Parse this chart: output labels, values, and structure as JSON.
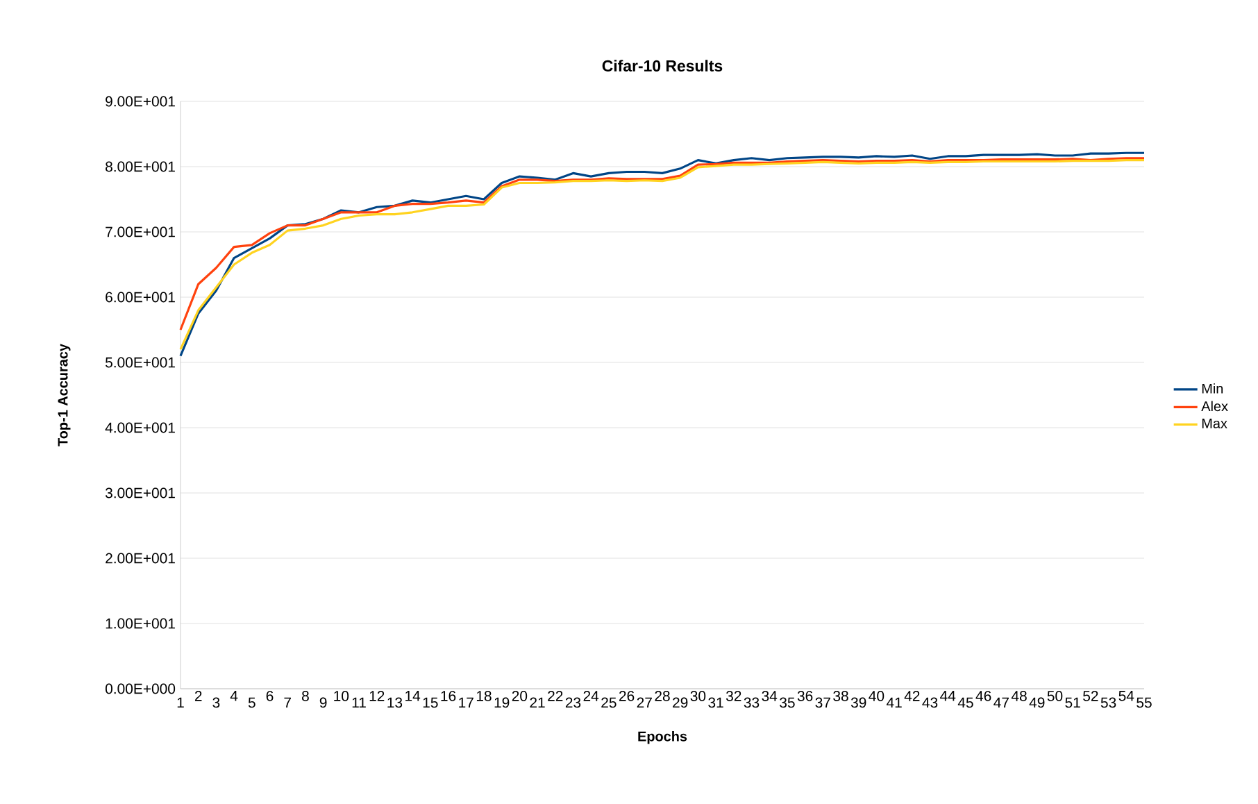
{
  "chart_data": {
    "type": "line",
    "title": "Cifar-10 Results",
    "xlabel": "Epochs",
    "ylabel": "Top-1 Accuracy",
    "categories": [
      "1",
      "2",
      "3",
      "4",
      "5",
      "6",
      "7",
      "8",
      "9",
      "10",
      "11",
      "12",
      "13",
      "14",
      "15",
      "16",
      "17",
      "18",
      "19",
      "20",
      "21",
      "22",
      "23",
      "24",
      "25",
      "26",
      "27",
      "28",
      "29",
      "30",
      "31",
      "32",
      "33",
      "34",
      "35",
      "36",
      "37",
      "38",
      "39",
      "40",
      "41",
      "42",
      "43",
      "44",
      "45",
      "46",
      "47",
      "48",
      "49",
      "50",
      "51",
      "52",
      "53",
      "54",
      "55"
    ],
    "series": [
      {
        "name": "Min",
        "color": "#004586",
        "values": [
          51,
          57.5,
          61,
          66,
          67.5,
          69,
          71,
          71.2,
          72,
          73.3,
          73,
          73.8,
          74,
          74.8,
          74.5,
          75,
          75.5,
          75,
          77.5,
          78.5,
          78.3,
          78,
          79,
          78.5,
          79,
          79.2,
          79.2,
          79,
          79.7,
          81,
          80.5,
          81,
          81.3,
          81,
          81.3,
          81.4,
          81.5,
          81.5,
          81.4,
          81.6,
          81.5,
          81.7,
          81.2,
          81.6,
          81.6,
          81.8,
          81.8,
          81.8,
          81.9,
          81.7,
          81.7,
          82,
          82,
          82.1,
          82.1
        ]
      },
      {
        "name": "Alex",
        "color": "#ff420e",
        "values": [
          55,
          62,
          64.5,
          67.7,
          68,
          69.8,
          71,
          71,
          72,
          73,
          73,
          73,
          74,
          74.3,
          74.3,
          74.5,
          74.8,
          74.5,
          77,
          78,
          78,
          77.8,
          78,
          78,
          78.2,
          78.1,
          78.1,
          78.1,
          78.6,
          80.3,
          80.4,
          80.6,
          80.6,
          80.6,
          80.8,
          80.9,
          81,
          80.9,
          80.8,
          80.9,
          80.9,
          81,
          80.8,
          81,
          81,
          81,
          81.1,
          81.1,
          81.1,
          81.1,
          81.2,
          81,
          81.2,
          81.3,
          81.3
        ]
      },
      {
        "name": "Max",
        "color": "#ffd320",
        "values": [
          52,
          58,
          61.5,
          65,
          66.8,
          68,
          70.2,
          70.5,
          71,
          72,
          72.5,
          72.7,
          72.7,
          73,
          73.5,
          74,
          74,
          74.2,
          76.8,
          77.5,
          77.5,
          77.6,
          77.8,
          77.8,
          77.9,
          77.8,
          77.9,
          77.8,
          78.3,
          79.9,
          80.1,
          80.3,
          80.3,
          80.4,
          80.5,
          80.6,
          80.7,
          80.6,
          80.5,
          80.6,
          80.6,
          80.7,
          80.6,
          80.7,
          80.7,
          80.8,
          80.8,
          80.8,
          80.8,
          80.8,
          80.9,
          80.9,
          80.9,
          81,
          81
        ]
      }
    ],
    "ylim": [
      0,
      90
    ],
    "yticks": [
      {
        "value": 0,
        "label": "0.00E+000"
      },
      {
        "value": 10,
        "label": "1.00E+001"
      },
      {
        "value": 20,
        "label": "2.00E+001"
      },
      {
        "value": 30,
        "label": "3.00E+001"
      },
      {
        "value": 40,
        "label": "4.00E+001"
      },
      {
        "value": 50,
        "label": "5.00E+001"
      },
      {
        "value": 60,
        "label": "6.00E+001"
      },
      {
        "value": 70,
        "label": "7.00E+001"
      },
      {
        "value": 80,
        "label": "8.00E+001"
      },
      {
        "value": 90,
        "label": "9.00E+001"
      }
    ],
    "grid": "y",
    "legend": "right",
    "marker": "none",
    "line_style": "solid"
  }
}
